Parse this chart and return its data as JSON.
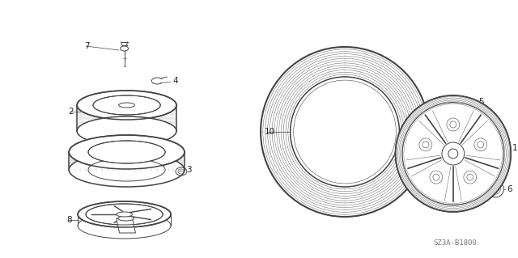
{
  "bg_color": "#ffffff",
  "diagram_code": "SZ3A-B1800",
  "line_color": "#444444",
  "text_color": "#222222",
  "label_fontsize": 7.5,
  "code_fontsize": 6.5,
  "code_color": "#777777"
}
